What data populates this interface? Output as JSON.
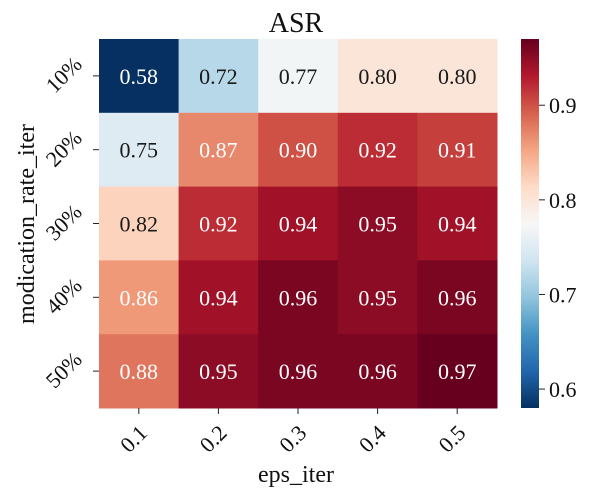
{
  "chart_data": {
    "type": "heatmap",
    "title": "ASR",
    "xlabel": "eps_iter",
    "ylabel": "modication_rate_iter",
    "x_categories": [
      "0.1",
      "0.2",
      "0.3",
      "0.4",
      "0.5"
    ],
    "y_categories": [
      "10%",
      "20%",
      "30%",
      "40%",
      "50%"
    ],
    "values": [
      [
        0.58,
        0.72,
        0.77,
        0.8,
        0.8
      ],
      [
        0.75,
        0.87,
        0.9,
        0.92,
        0.91
      ],
      [
        0.82,
        0.92,
        0.94,
        0.95,
        0.94
      ],
      [
        0.86,
        0.94,
        0.96,
        0.95,
        0.96
      ],
      [
        0.88,
        0.95,
        0.96,
        0.96,
        0.97
      ]
    ],
    "value_labels": [
      [
        "0.58",
        "0.72",
        "0.77",
        "0.80",
        "0.80"
      ],
      [
        "0.75",
        "0.87",
        "0.90",
        "0.92",
        "0.91"
      ],
      [
        "0.82",
        "0.92",
        "0.94",
        "0.95",
        "0.94"
      ],
      [
        "0.86",
        "0.94",
        "0.96",
        "0.95",
        "0.96"
      ],
      [
        "0.88",
        "0.95",
        "0.96",
        "0.96",
        "0.97"
      ]
    ],
    "colorbar": {
      "range": [
        0.58,
        0.97
      ],
      "ticks": [
        0.6,
        0.7,
        0.8,
        0.9
      ],
      "tick_labels": [
        "0.6",
        "0.7",
        "0.8",
        "0.9"
      ],
      "colormap": "RdBu_r"
    },
    "x_tick_rotation_deg": 45,
    "y_tick_rotation_deg": 45,
    "grid": false,
    "legend": "none"
  }
}
